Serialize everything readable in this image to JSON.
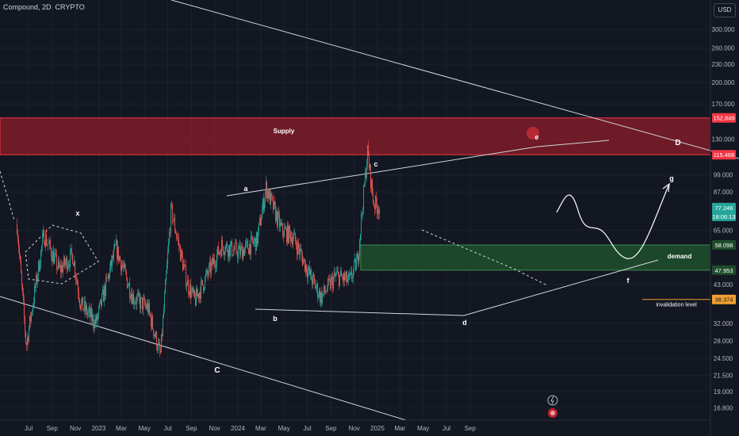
{
  "header": {
    "title": "Compound, 2D, CRYPTO",
    "currency": "USD"
  },
  "colors": {
    "background": "#131722",
    "up": "#26a69a",
    "down": "#ef5350",
    "grid": "#1e222d",
    "supply_fill": "#8e1d2a",
    "demand_fill": "#1e4d2b",
    "invalidation": "#f0a030"
  },
  "chart_data": {
    "type": "candlestick",
    "scale": "log",
    "ylim": [
      15.5,
      360
    ],
    "x_tick_labels": [
      "Jul",
      "Sep",
      "Nov",
      "2023",
      "Mar",
      "May",
      "Jul",
      "Sep",
      "Nov",
      "2024",
      "Mar",
      "May",
      "Jul",
      "Sep",
      "Nov",
      "2025",
      "Mar",
      "May",
      "Jul",
      "Sep"
    ],
    "y_tick_labels": [
      "300.000",
      "260.000",
      "230.000",
      "200.000",
      "170.000",
      "130.000",
      "99.000",
      "87.000",
      "65.000",
      "43.000",
      "32.000",
      "28.000",
      "24.500",
      "21.500",
      "19.000",
      "16.800"
    ],
    "price_badges": [
      {
        "text": "152.849",
        "value": 152.849,
        "color": "#f23645"
      },
      {
        "text": "115.468",
        "value": 115.468,
        "color": "#f23645"
      },
      {
        "text": "77.246",
        "value": 77.246,
        "color": "#26a69a"
      },
      {
        "text": "18:06:13",
        "value": 73.8,
        "color": "#26a69a"
      },
      {
        "text": "58.098",
        "value": 58.098,
        "color": "#1e4d2b"
      },
      {
        "text": "47.953",
        "value": 47.953,
        "color": "#1e4d2b"
      },
      {
        "text": "38.374",
        "value": 38.374,
        "color": "#f0a030"
      }
    ],
    "zones": [
      {
        "name": "Supply",
        "low": 115.468,
        "high": 152.849
      },
      {
        "name": "demand",
        "low": 47.953,
        "high": 58.098
      }
    ],
    "invalidation": {
      "label": "invalidation level",
      "value": 38.374
    },
    "wave_labels": [
      "x",
      "a",
      "b",
      "c",
      "C",
      "d",
      "e",
      "f",
      "g",
      "D"
    ],
    "price_anchors": [
      {
        "date": "2022-06-01",
        "price": 68
      },
      {
        "date": "2022-06-25",
        "price": 27
      },
      {
        "date": "2022-08-10",
        "price": 63
      },
      {
        "date": "2022-09-20",
        "price": 48
      },
      {
        "date": "2022-10-25",
        "price": 54
      },
      {
        "date": "2022-11-15",
        "price": 37
      },
      {
        "date": "2022-12-25",
        "price": 32
      },
      {
        "date": "2023-02-15",
        "price": 57
      },
      {
        "date": "2023-04-01",
        "price": 39
      },
      {
        "date": "2023-05-10",
        "price": 36
      },
      {
        "date": "2023-06-12",
        "price": 25
      },
      {
        "date": "2023-07-10",
        "price": 76
      },
      {
        "date": "2023-08-20",
        "price": 44
      },
      {
        "date": "2023-09-10",
        "price": 38
      },
      {
        "date": "2023-11-20",
        "price": 58
      },
      {
        "date": "2024-01-05",
        "price": 55
      },
      {
        "date": "2024-02-20",
        "price": 60
      },
      {
        "date": "2024-03-15",
        "price": 90
      },
      {
        "date": "2024-04-25",
        "price": 65
      },
      {
        "date": "2024-05-25",
        "price": 62
      },
      {
        "date": "2024-07-05",
        "price": 47
      },
      {
        "date": "2024-08-06",
        "price": 39
      },
      {
        "date": "2024-09-15",
        "price": 46
      },
      {
        "date": "2024-10-20",
        "price": 44
      },
      {
        "date": "2024-11-10",
        "price": 52
      },
      {
        "date": "2024-12-06",
        "price": 118
      },
      {
        "date": "2024-12-22",
        "price": 80
      },
      {
        "date": "2025-01-08",
        "price": 77.246
      }
    ]
  }
}
